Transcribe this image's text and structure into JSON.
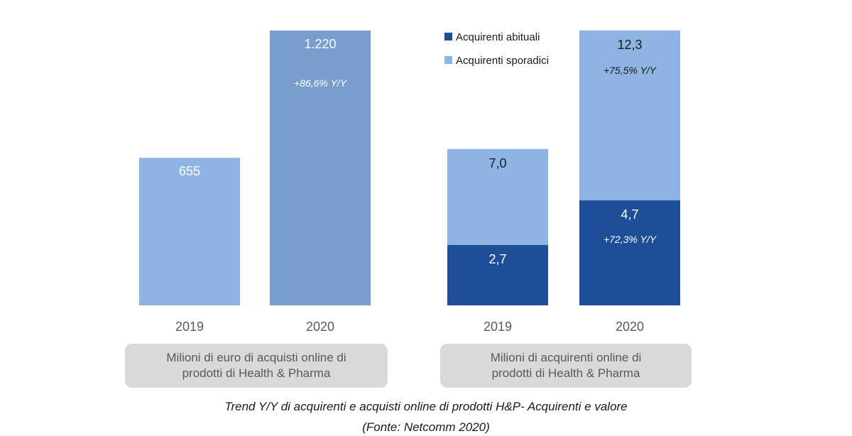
{
  "chart_data": [
    {
      "type": "bar",
      "categories": [
        "2019",
        "2020"
      ],
      "values": [
        655,
        1220
      ],
      "value_labels": [
        "655",
        "1.220"
      ],
      "growth_annotation": "+86,6% Y/Y",
      "box_label": [
        "Milioni di euro di acquisti online di",
        "prodotti di Health  & Pharma"
      ],
      "ylim": [
        0,
        1220
      ],
      "grid": false,
      "colors": {
        "2019": "#8eb4e3",
        "2020": "#789ecd"
      }
    },
    {
      "type": "bar",
      "stacked": true,
      "categories": [
        "2019",
        "2020"
      ],
      "series": [
        {
          "name": "Acquirenti abituali",
          "values": [
            2.7,
            4.7
          ],
          "labels": [
            "2,7",
            "4,7"
          ],
          "color": "#1f4e99"
        },
        {
          "name": "Acquirenti sporadici",
          "values": [
            4.3,
            7.6
          ],
          "color": "#8eb4e3"
        }
      ],
      "totals": [
        7.0,
        12.3
      ],
      "total_labels": [
        "7,0",
        "12,3"
      ],
      "growth_annotations": {
        "total": "+75,5% Y/Y",
        "abituali": "+72,3% Y/Y"
      },
      "legend_position": "top-left",
      "box_label": [
        "Milioni di acquirenti online di",
        "prodotti di Health  & Pharma"
      ],
      "ylim": [
        0,
        12.3
      ],
      "grid": false
    }
  ],
  "caption": {
    "line1": "Trend Y/Y di acquirenti e acquisti online di prodotti H&P- Acquirenti e valore",
    "line2": "(Fonte: Netcomm 2020)"
  },
  "colors": {
    "label_box": "#d9d9d9",
    "axis_text": "#595959",
    "dark_text": "#1a1a1a",
    "white_text": "#ffffff"
  }
}
